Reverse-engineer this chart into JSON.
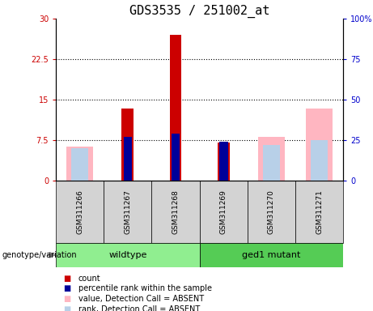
{
  "title": "GDS3535 / 251002_at",
  "samples": [
    "GSM311266",
    "GSM311267",
    "GSM311268",
    "GSM311269",
    "GSM311270",
    "GSM311271"
  ],
  "red_count": [
    0,
    13.3,
    27.0,
    7.0,
    0,
    0
  ],
  "pink_value_absent": [
    6.2,
    0,
    0,
    0,
    8.0,
    13.3
  ],
  "blue_rank": [
    0,
    8.0,
    8.7,
    7.2,
    0,
    0
  ],
  "lightblue_rank_absent": [
    6.0,
    0,
    0,
    0,
    6.5,
    7.5
  ],
  "ylim_left": [
    0,
    30
  ],
  "ylim_right": [
    0,
    100
  ],
  "yticks_left": [
    0,
    7.5,
    15,
    22.5,
    30
  ],
  "yticks_right": [
    0,
    25,
    50,
    75,
    100
  ],
  "ytick_labels_left": [
    "0",
    "7.5",
    "15",
    "22.5",
    "30"
  ],
  "ytick_labels_right": [
    "0",
    "25",
    "50",
    "75",
    "100%"
  ],
  "hlines": [
    7.5,
    15,
    22.5
  ],
  "red_color": "#CC0000",
  "blue_color": "#000099",
  "pink_color": "#FFB6C1",
  "lightblue_color": "#B8D0E8",
  "left_tick_color": "#CC0000",
  "right_tick_color": "#0000CC",
  "bg_plot": "#FFFFFF",
  "bg_samples": "#D3D3D3",
  "bg_wildtype": "#90EE90",
  "bg_mutant": "#55CC55",
  "title_fontsize": 11,
  "legend_labels": [
    "count",
    "percentile rank within the sample",
    "value, Detection Call = ABSENT",
    "rank, Detection Call = ABSENT"
  ],
  "legend_colors": [
    "#CC0000",
    "#000099",
    "#FFB6C1",
    "#B8D0E8"
  ]
}
